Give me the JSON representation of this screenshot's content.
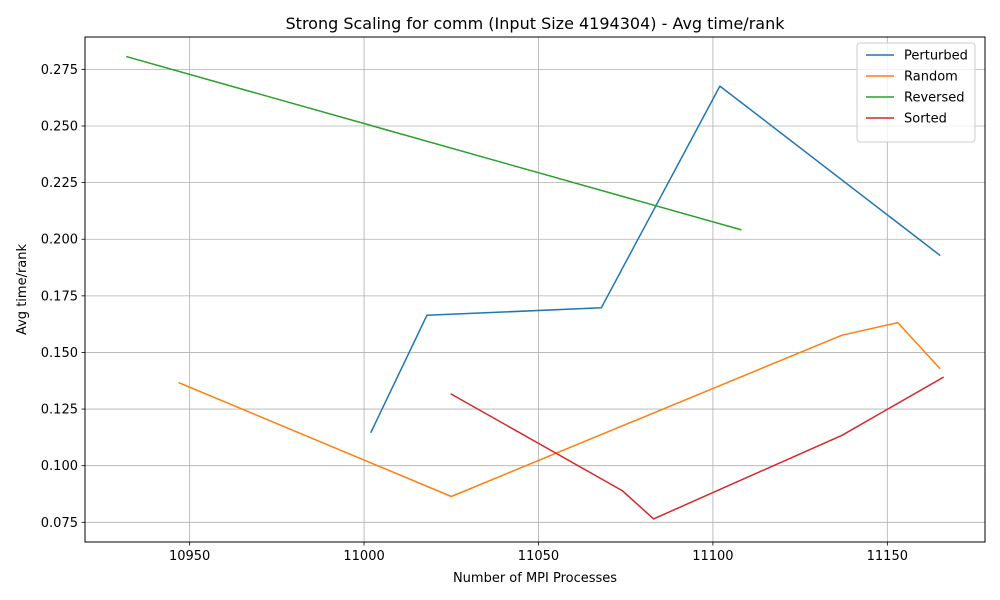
{
  "chart_data": {
    "type": "line",
    "title": "Strong Scaling for comm (Input Size 4194304) - Avg time/rank",
    "xlabel": "Number of MPI Processes",
    "ylabel": "Avg time/rank",
    "xlim": [
      10920,
      11178
    ],
    "ylim": [
      0.0663,
      0.2893
    ],
    "xticks": [
      10950,
      11000,
      11050,
      11100,
      11150
    ],
    "yticks": [
      0.075,
      0.1,
      0.125,
      0.15,
      0.175,
      0.2,
      0.225,
      0.25,
      0.275
    ],
    "xtick_labels": [
      "10950",
      "11000",
      "11050",
      "11100",
      "11150"
    ],
    "ytick_labels": [
      "0.075",
      "0.100",
      "0.125",
      "0.150",
      "0.175",
      "0.200",
      "0.225",
      "0.250",
      "0.275"
    ],
    "grid": true,
    "legend_position": "top-right",
    "series": [
      {
        "name": "Perturbed",
        "color": "#1f77b4",
        "x": [
          11002,
          11018,
          11068,
          11102,
          11165
        ],
        "y": [
          0.1148,
          0.1664,
          0.1697,
          0.2676,
          0.193
        ]
      },
      {
        "name": "Random",
        "color": "#ff7f0e",
        "x": [
          10947,
          11025,
          11137,
          11153,
          11165
        ],
        "y": [
          0.1366,
          0.0864,
          0.1576,
          0.1632,
          0.143
        ]
      },
      {
        "name": "Reversed",
        "color": "#2ca02c",
        "x": [
          10932,
          11108
        ],
        "y": [
          0.2806,
          0.2042
        ]
      },
      {
        "name": "Sorted",
        "color": "#d62728",
        "x": [
          11025,
          11074,
          11083,
          11137,
          11166
        ],
        "y": [
          0.1316,
          0.089,
          0.0765,
          0.1134,
          0.139
        ]
      }
    ]
  }
}
